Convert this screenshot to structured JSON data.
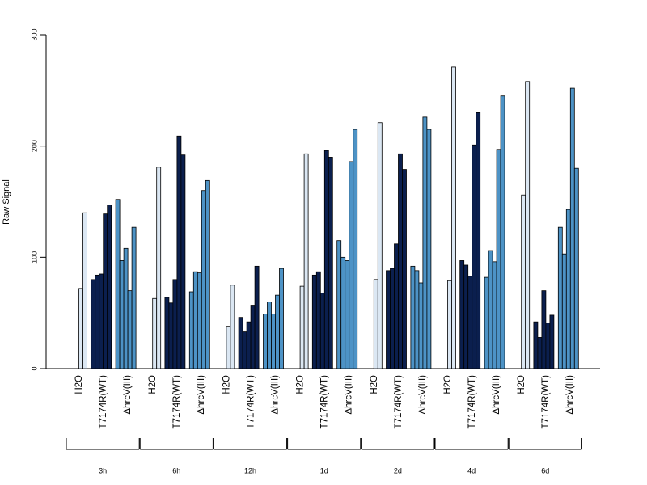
{
  "chart_data": {
    "type": "bar",
    "ylabel": "Raw Signal",
    "ylim": [
      0,
      300
    ],
    "yticks": [
      0,
      100,
      200,
      300
    ],
    "conditions": [
      "H2O",
      "T7174R(WT)",
      "ΔhrcV(III)"
    ],
    "timepoints": [
      "3h",
      "6h",
      "12h",
      "1d",
      "2d",
      "4d",
      "6d"
    ],
    "colors": {
      "H2O": "#dbe7f3",
      "T7174R(WT)": "#0b1f4e",
      "ΔhrcV(III)": "#4d93c6"
    },
    "groups": [
      {
        "timepoint": "3h",
        "H2O": [
          72,
          140
        ],
        "T7174R(WT)": [
          80,
          84,
          85,
          139,
          147
        ],
        "ΔhrcV(III)": [
          152,
          97,
          108,
          70,
          127
        ]
      },
      {
        "timepoint": "6h",
        "H2O": [
          63,
          181
        ],
        "T7174R(WT)": [
          64,
          59,
          80,
          209,
          192
        ],
        "ΔhrcV(III)": [
          69,
          87,
          86,
          160,
          169
        ]
      },
      {
        "timepoint": "12h",
        "H2O": [
          38,
          75
        ],
        "T7174R(WT)": [
          46,
          33,
          42,
          57,
          92
        ],
        "ΔhrcV(III)": [
          49,
          60,
          49,
          66,
          90
        ]
      },
      {
        "timepoint": "1d",
        "H2O": [
          74,
          193
        ],
        "T7174R(WT)": [
          84,
          87,
          68,
          196,
          190
        ],
        "ΔhrcV(III)": [
          115,
          100,
          97,
          186,
          215
        ]
      },
      {
        "timepoint": "2d",
        "H2O": [
          80,
          221
        ],
        "T7174R(WT)": [
          88,
          90,
          112,
          193,
          179
        ],
        "ΔhrcV(III)": [
          92,
          88,
          77,
          226,
          215
        ]
      },
      {
        "timepoint": "4d",
        "H2O": [
          79,
          271
        ],
        "T7174R(WT)": [
          97,
          93,
          83,
          201,
          230
        ],
        "ΔhrcV(III)": [
          82,
          106,
          96,
          197,
          245
        ]
      },
      {
        "timepoint": "6d",
        "H2O": [
          156,
          258
        ],
        "T7174R(WT)": [
          42,
          28,
          70,
          41,
          48
        ],
        "ΔhrcV(III)": [
          127,
          103,
          143,
          252,
          180
        ]
      }
    ]
  }
}
